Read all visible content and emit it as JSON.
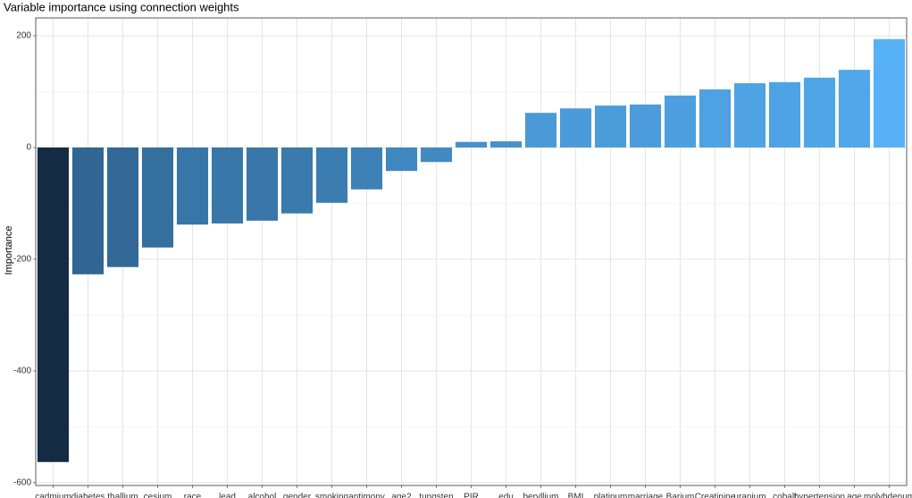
{
  "chart_data": {
    "type": "bar",
    "title": "Variable importance using connection weights",
    "y_label": "Importance",
    "categories": [
      "cadmium",
      "diabetes",
      "thallium",
      "cesium",
      "race",
      "lead",
      "alcohol",
      "gender",
      "smoking",
      "antimony",
      "age2",
      "tungsten",
      "PIR",
      "edu",
      "beryllium",
      "BMI",
      "platinum",
      "marriage",
      "Barium",
      "Creatinine",
      "uranium",
      "cobalt",
      "hypertension",
      "age",
      "molybdenum"
    ],
    "values": [
      -563,
      -227,
      -214,
      -179,
      -138,
      -136,
      -131,
      -118,
      -99,
      -75,
      -42,
      -26,
      10,
      11,
      62,
      70,
      75,
      77,
      93,
      104,
      115,
      117,
      125,
      139,
      194
    ],
    "color_scale": [
      "#132B43",
      "#56B1F7"
    ],
    "ylim": [
      -605,
      232
    ],
    "yticks": [
      -600,
      -400,
      -200,
      0,
      200
    ],
    "grid": true
  }
}
